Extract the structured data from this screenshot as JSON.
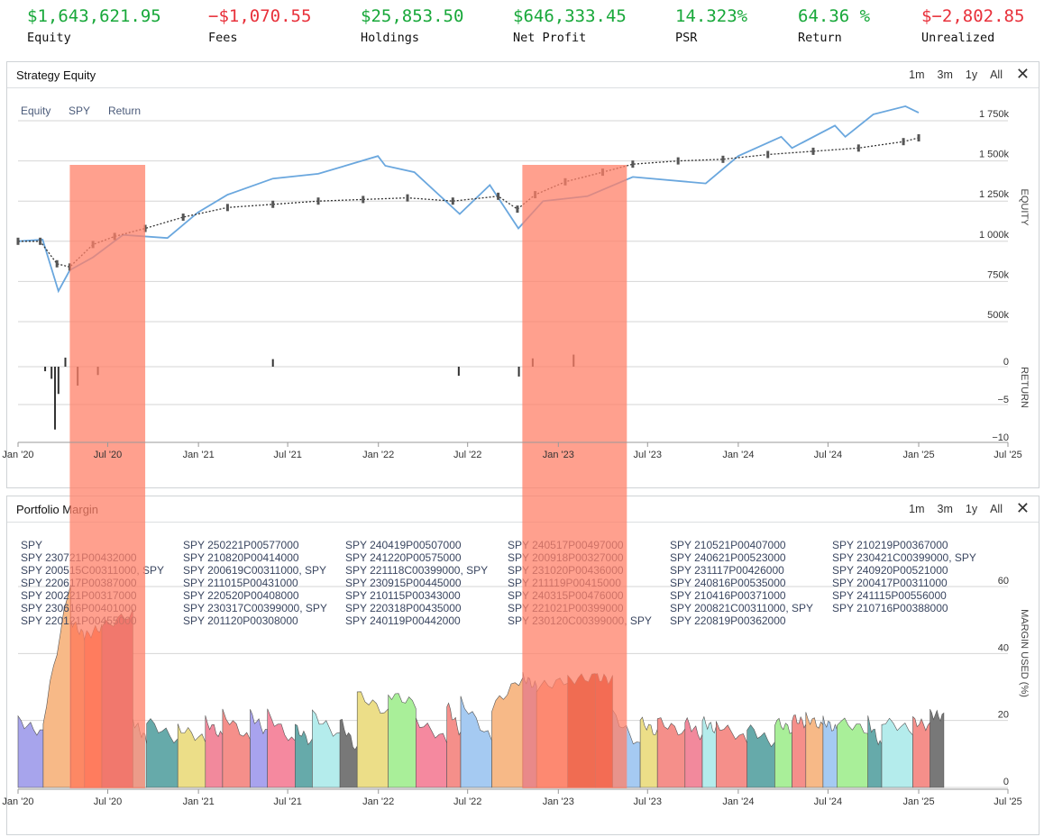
{
  "stats": [
    {
      "value": "$1,643,621.95",
      "label": "Equity",
      "sign": "pos"
    },
    {
      "value": "−$1,070.55",
      "label": "Fees",
      "sign": "neg"
    },
    {
      "value": "$25,853.50",
      "label": "Holdings",
      "sign": "pos"
    },
    {
      "value": "$646,333.45",
      "label": "Net Profit",
      "sign": "pos"
    },
    {
      "value": "14.323%",
      "label": "PSR",
      "sign": "pos"
    },
    {
      "value": "64.36 %",
      "label": "Return",
      "sign": "pos"
    },
    {
      "value": "$−2,802.85",
      "label": "Unrealized",
      "sign": "neg"
    }
  ],
  "range_buttons": [
    "1m",
    "3m",
    "1y",
    "All"
  ],
  "x_ticks": [
    "Jan '20",
    "Jul '20",
    "Jan '21",
    "Jul '21",
    "Jan '22",
    "Jul '22",
    "Jan '23",
    "Jul '23",
    "Jan '24",
    "Jul '24",
    "Jan '25",
    "Jul '25"
  ],
  "colors": {
    "positive": "#18a83a",
    "negative": "#e8313b",
    "spy_line": "#6aa7de",
    "highlight": "#ff8068",
    "grid": "#d6d6d6"
  },
  "equity_panel": {
    "title": "Strategy Equity",
    "legend": [
      "Equity",
      "SPY",
      "Return"
    ],
    "equity_axis_title": "EQUITY",
    "return_axis_title": "RETURN",
    "equity_ticks": [
      "1 750k",
      "1 500k",
      "1 250k",
      "1 000k",
      "750k",
      "500k"
    ],
    "return_ticks": [
      "0",
      "−5",
      "−10"
    ]
  },
  "margin_panel": {
    "title": "Portfolio Margin",
    "axis_title": "MARGIN USED (%)",
    "y_ticks": [
      "60",
      "40",
      "20",
      "0"
    ],
    "legend_columns": [
      [
        "SPY",
        "SPY 230721P00432000",
        "SPY 200515C00311000, SPY",
        "SPY 220617P00387000",
        "SPY 200221P00317000",
        "SPY 230616P00401000",
        "SPY 220121P00455000"
      ],
      [
        "SPY 250221P00577000",
        "SPY 210820P00414000",
        "SPY 200619C00311000, SPY",
        "SPY 211015P00431000",
        "SPY 220520P00408000",
        "SPY 230317C00399000, SPY",
        "SPY 201120P00308000"
      ],
      [
        "SPY 240419P00507000",
        "SPY 241220P00575000",
        "SPY 221118C00399000, SPY",
        "SPY 230915P00445000",
        "SPY 210115P00343000",
        "SPY 220318P00435000",
        "SPY 240119P00442000"
      ],
      [
        "SPY 240517P00497000",
        "SPY 200918P00327000",
        "SPY 231020P00436000",
        "SPY 211119P00415000",
        "SPY 240315P00476000",
        "SPY 221021P00399000",
        "SPY 230120C00399000, SPY"
      ],
      [
        "SPY 210521P00407000",
        "SPY 240621P00523000",
        "SPY 231117P00426000",
        "SPY 240816P00535000",
        "SPY 210416P00371000",
        "SPY 200821C00311000, SPY",
        "SPY 220819P00362000"
      ],
      [
        "SPY 210219P00367000",
        "SPY 230421C00399000, SPY",
        "SPY 240920P00521000",
        "SPY 200417P00311000",
        "SPY 241115P00556000",
        "SPY 210716P00388000"
      ]
    ]
  },
  "chart_data": [
    {
      "type": "line",
      "title": "Strategy Equity",
      "ylabel": "EQUITY",
      "ylim": [
        500000,
        1900000
      ],
      "x_range": [
        "2020-01-01",
        "2025-07-01"
      ],
      "highlights": [
        [
          "2020-04-15",
          "2020-09-15"
        ],
        [
          "2022-10-20",
          "2023-05-20"
        ]
      ],
      "series": [
        {
          "name": "Equity",
          "kind": "candlestick-close",
          "x": [
            "2020-01-01",
            "2020-02-15",
            "2020-03-20",
            "2020-04-15",
            "2020-06-01",
            "2020-07-15",
            "2020-09-15",
            "2020-12-01",
            "2021-03-01",
            "2021-06-01",
            "2021-09-01",
            "2021-12-01",
            "2022-03-01",
            "2022-06-01",
            "2022-09-01",
            "2022-10-10",
            "2022-11-15",
            "2023-01-15",
            "2023-04-01",
            "2023-06-01",
            "2023-09-01",
            "2023-12-01",
            "2024-03-01",
            "2024-06-01",
            "2024-09-01",
            "2024-12-01",
            "2025-01-01"
          ],
          "y": [
            1000000,
            1000000,
            860000,
            840000,
            980000,
            1030000,
            1080000,
            1150000,
            1210000,
            1230000,
            1250000,
            1260000,
            1270000,
            1250000,
            1280000,
            1200000,
            1290000,
            1370000,
            1430000,
            1480000,
            1500000,
            1510000,
            1540000,
            1560000,
            1580000,
            1620000,
            1643622
          ]
        },
        {
          "name": "SPY",
          "x": [
            "2020-01-01",
            "2020-02-20",
            "2020-03-23",
            "2020-04-15",
            "2020-06-01",
            "2020-08-01",
            "2020-10-30",
            "2020-12-31",
            "2021-03-01",
            "2021-06-01",
            "2021-09-01",
            "2021-12-31",
            "2022-01-15",
            "2022-03-15",
            "2022-06-15",
            "2022-08-15",
            "2022-10-12",
            "2022-12-01",
            "2023-03-01",
            "2023-06-01",
            "2023-10-27",
            "2024-01-01",
            "2024-03-28",
            "2024-04-19",
            "2024-07-15",
            "2024-08-05",
            "2024-10-01",
            "2024-12-05",
            "2025-01-01"
          ],
          "y": [
            1000000,
            1010000,
            690000,
            820000,
            900000,
            1040000,
            1020000,
            1180000,
            1290000,
            1390000,
            1420000,
            1530000,
            1470000,
            1430000,
            1170000,
            1350000,
            1080000,
            1250000,
            1280000,
            1400000,
            1360000,
            1530000,
            1650000,
            1580000,
            1720000,
            1650000,
            1790000,
            1840000,
            1800000
          ]
        }
      ]
    },
    {
      "type": "bar",
      "title": "Return",
      "ylabel": "RETURN",
      "ylim": [
        -10,
        1.5
      ],
      "x": [
        "2020-02-25",
        "2020-03-09",
        "2020-03-16",
        "2020-03-23",
        "2020-04-06",
        "2020-05-01",
        "2020-06-11",
        "2021-06-01",
        "2022-06-13",
        "2022-10-13",
        "2022-11-10",
        "2023-02-01"
      ],
      "values": [
        -0.6,
        -1.6,
        -8.3,
        -3.6,
        1.2,
        -2.5,
        -1.1,
        1.0,
        -1.2,
        -1.3,
        1.1,
        1.6
      ]
    },
    {
      "type": "area",
      "title": "Portfolio Margin",
      "ylabel": "MARGIN USED (%)",
      "ylim": [
        0,
        70
      ],
      "x_range": [
        "2020-01-01",
        "2025-07-01"
      ],
      "segments": [
        {
          "start": "2020-01-01",
          "end": "2020-02-21",
          "from": 20,
          "to": 16,
          "color": "#a7a4ec"
        },
        {
          "start": "2020-02-21",
          "end": "2020-04-17",
          "from": 20,
          "to": 62,
          "color": "#f7b987"
        },
        {
          "start": "2020-04-17",
          "end": "2020-05-15",
          "from": 50,
          "to": 45,
          "color": "#f8a05a"
        },
        {
          "start": "2020-05-15",
          "end": "2020-06-19",
          "from": 45,
          "to": 48,
          "color": "#ff7040"
        },
        {
          "start": "2020-06-19",
          "end": "2020-08-21",
          "from": 48,
          "to": 52,
          "color": "#c8607c"
        },
        {
          "start": "2020-08-21",
          "end": "2020-09-18",
          "from": 20,
          "to": 14,
          "color": "#b4ecec"
        },
        {
          "start": "2020-09-18",
          "end": "2020-11-20",
          "from": 20,
          "to": 14,
          "color": "#66aaaa"
        },
        {
          "start": "2020-11-20",
          "end": "2021-01-15",
          "from": 18,
          "to": 14,
          "color": "#ecde88"
        },
        {
          "start": "2021-01-15",
          "end": "2021-02-19",
          "from": 20,
          "to": 15,
          "color": "#f2899c"
        },
        {
          "start": "2021-02-19",
          "end": "2021-04-16",
          "from": 22,
          "to": 14,
          "color": "#f58f8a"
        },
        {
          "start": "2021-04-16",
          "end": "2021-05-21",
          "from": 22,
          "to": 16,
          "color": "#a8a3ee"
        },
        {
          "start": "2021-05-21",
          "end": "2021-07-16",
          "from": 22,
          "to": 13,
          "color": "#f5899f"
        },
        {
          "start": "2021-07-16",
          "end": "2021-08-20",
          "from": 18,
          "to": 13,
          "color": "#66aaaa"
        },
        {
          "start": "2021-08-20",
          "end": "2021-10-15",
          "from": 22,
          "to": 15,
          "color": "#b4ecec"
        },
        {
          "start": "2021-10-15",
          "end": "2021-11-19",
          "from": 20,
          "to": 11,
          "color": "#787878"
        },
        {
          "start": "2021-11-19",
          "end": "2022-01-21",
          "from": 28,
          "to": 22,
          "color": "#ecde88"
        },
        {
          "start": "2022-01-21",
          "end": "2022-03-18",
          "from": 28,
          "to": 25,
          "color": "#a9ef99"
        },
        {
          "start": "2022-03-18",
          "end": "2022-05-20",
          "from": 20,
          "to": 14,
          "color": "#f5899f"
        },
        {
          "start": "2022-05-20",
          "end": "2022-06-17",
          "from": 25,
          "to": 16,
          "color": "#f58f8a"
        },
        {
          "start": "2022-06-17",
          "end": "2022-08-19",
          "from": 26,
          "to": 14,
          "color": "#a5caf2"
        },
        {
          "start": "2022-08-19",
          "end": "2022-10-21",
          "from": 24,
          "to": 33,
          "color": "#f7b987"
        },
        {
          "start": "2022-10-21",
          "end": "2022-11-18",
          "from": 33,
          "to": 30,
          "color": "#a7a4ec"
        },
        {
          "start": "2022-11-18",
          "end": "2023-01-20",
          "from": 30,
          "to": 32,
          "color": "#f7a38d"
        },
        {
          "start": "2023-01-20",
          "end": "2023-03-17",
          "from": 32,
          "to": 33,
          "color": "#c23310"
        },
        {
          "start": "2023-03-17",
          "end": "2023-04-21",
          "from": 33,
          "to": 32,
          "color": "#d0301a"
        },
        {
          "start": "2023-04-21",
          "end": "2023-06-16",
          "from": 22,
          "to": 12,
          "color": "#a5caf2"
        },
        {
          "start": "2023-06-16",
          "end": "2023-07-21",
          "from": 20,
          "to": 16,
          "color": "#ecde88"
        },
        {
          "start": "2023-07-21",
          "end": "2023-09-15",
          "from": 20,
          "to": 16,
          "color": "#f58f8a"
        },
        {
          "start": "2023-09-15",
          "end": "2023-10-20",
          "from": 20,
          "to": 15,
          "color": "#f2899c"
        },
        {
          "start": "2023-10-20",
          "end": "2023-11-17",
          "from": 20,
          "to": 17,
          "color": "#b4ecec"
        },
        {
          "start": "2023-11-17",
          "end": "2024-01-19",
          "from": 19,
          "to": 14,
          "color": "#f58f8a"
        },
        {
          "start": "2024-01-19",
          "end": "2024-03-15",
          "from": 18,
          "to": 13,
          "color": "#66aaaa"
        },
        {
          "start": "2024-03-15",
          "end": "2024-04-19",
          "from": 20,
          "to": 17,
          "color": "#a9ef99"
        },
        {
          "start": "2024-04-19",
          "end": "2024-05-17",
          "from": 21,
          "to": 19,
          "color": "#f58f8a"
        },
        {
          "start": "2024-05-17",
          "end": "2024-06-21",
          "from": 21,
          "to": 18,
          "color": "#f7b987"
        },
        {
          "start": "2024-06-21",
          "end": "2024-07-19",
          "from": 20,
          "to": 17,
          "color": "#a5caf2"
        },
        {
          "start": "2024-07-19",
          "end": "2024-09-20",
          "from": 20,
          "to": 17,
          "color": "#a9ef99"
        },
        {
          "start": "2024-09-20",
          "end": "2024-10-18",
          "from": 20,
          "to": 12,
          "color": "#66aaaa"
        },
        {
          "start": "2024-10-18",
          "end": "2024-12-20",
          "from": 20,
          "to": 17,
          "color": "#b4ecec"
        },
        {
          "start": "2024-12-20",
          "end": "2025-01-24",
          "from": 20,
          "to": 18,
          "color": "#f58f8a"
        },
        {
          "start": "2025-01-24",
          "end": "2025-02-21",
          "from": 22,
          "to": 21,
          "color": "#787878"
        }
      ]
    }
  ]
}
